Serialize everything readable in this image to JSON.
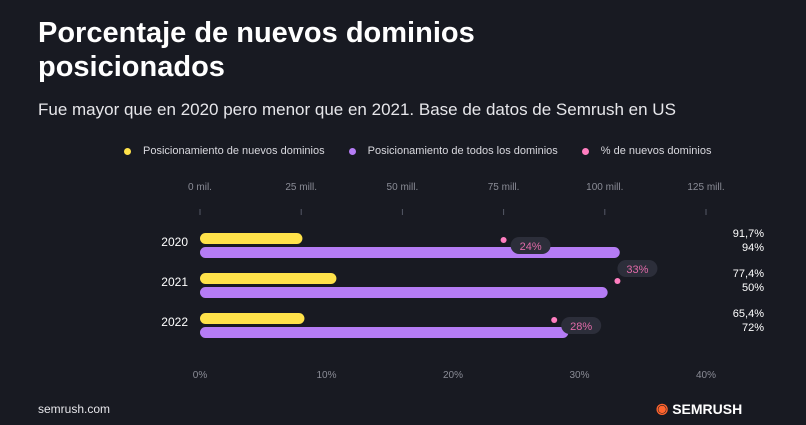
{
  "chart_data": {
    "type": "bar",
    "title": "Porcentaje de nuevos dominios posicionados",
    "subtitle": "Fue mayor que en 2020 pero menor que en 2021. Base de datos de Semrush en US",
    "categories": [
      "2020",
      "2021",
      "2022"
    ],
    "series": [
      {
        "name": "Posicionamiento de nuevos dominios",
        "color": "#ffe24a",
        "values": [
          25.3,
          33.7,
          25.8
        ]
      },
      {
        "name": "Posicionamiento de todos los dominios",
        "color": "#b57cf5",
        "values": [
          103.7,
          100.7,
          91
        ]
      },
      {
        "name": "% de nuevos dominios",
        "color": "#ff7ec0",
        "values": [
          24,
          33,
          28
        ],
        "labels": [
          "24%",
          "33%",
          "28%"
        ]
      }
    ],
    "right_labels": [
      [
        "91,7%",
        "94%"
      ],
      [
        "77,4%",
        "50%"
      ],
      [
        "65,4%",
        "72%"
      ]
    ],
    "x_ticks_top": [
      "0 mil.",
      "25 mill.",
      "50 mill.",
      "75 mill.",
      "100 mill.",
      "125 mill."
    ],
    "x_ticks_bottom": [
      "0%",
      "10%",
      "20%",
      "30%",
      "40%"
    ],
    "xlim_top": [
      0,
      125
    ],
    "xlim_bottom": [
      0,
      40
    ]
  },
  "footer": {
    "site": "semrush.com",
    "brand": "SEMRUSH"
  }
}
